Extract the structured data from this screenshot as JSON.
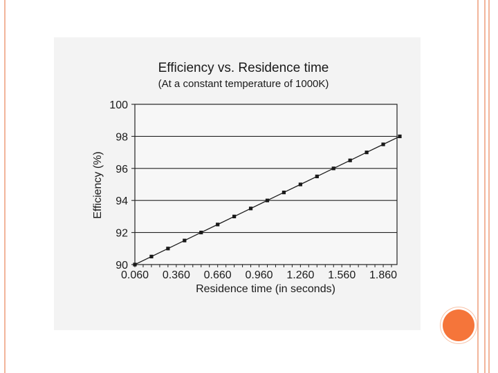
{
  "colors": {
    "accent": "#f5753a",
    "frame": "#f2b49a",
    "card": "#f3f3f3",
    "ink": "#1a1a1a",
    "grid": "#222222"
  },
  "chart_data": {
    "type": "line",
    "title": "Efficiency vs. Residence time",
    "subtitle": "(At a constant temperature of 1000K)",
    "xlabel": "Residence time (in seconds)",
    "ylabel": "Efficiency (%)",
    "xlim": [
      0.06,
      1.96
    ],
    "ylim": [
      90,
      100
    ],
    "x_ticks": [
      "0.060",
      "0.360",
      "0.660",
      "0.960",
      "1.260",
      "1.560",
      "1.860"
    ],
    "y_ticks": [
      "90",
      "92",
      "94",
      "96",
      "98",
      "100"
    ],
    "grid": "horizontal",
    "legend": "none",
    "series": [
      {
        "x": [
          0.06,
          0.18,
          0.3,
          0.42,
          0.54,
          0.66,
          0.78,
          0.9,
          1.02,
          1.14,
          1.26,
          1.38,
          1.5,
          1.62,
          1.74,
          1.86,
          1.98
        ],
        "values": [
          90.0,
          90.5,
          91.0,
          91.5,
          92.0,
          92.5,
          93.0,
          93.5,
          94.0,
          94.5,
          95.0,
          95.5,
          96.0,
          96.5,
          97.0,
          97.5,
          98.0
        ]
      }
    ]
  }
}
